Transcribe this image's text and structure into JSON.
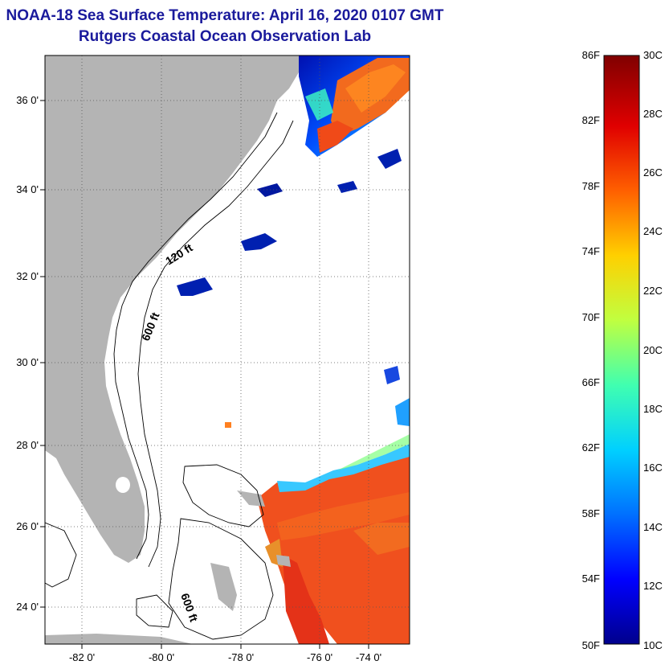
{
  "header": {
    "title": "NOAA-18 Sea Surface Temperature:  April 16, 2020 0107 GMT",
    "subtitle": "Rutgers Coastal Ocean Observation Lab"
  },
  "map": {
    "latitude_ticks": [
      "36 0'",
      "34 0'",
      "32 0'",
      "30 0'",
      "28 0'",
      "26 0'",
      "24 0'"
    ],
    "longitude_ticks": [
      "-82 0'",
      "-80 0'",
      "-78 0'",
      "-76 0'",
      "-74 0'"
    ],
    "contour_labels": [
      "120 ft",
      "600 ft",
      "600 ft"
    ],
    "colors": {
      "land": "#b4b4b4",
      "ocean_missing": "#ffffff",
      "warm_water": "#f0501e",
      "cold_water": "#001e8c"
    }
  },
  "colorbar": {
    "fahrenheit_labels": [
      "86F",
      "82F",
      "78F",
      "74F",
      "70F",
      "66F",
      "62F",
      "58F",
      "54F",
      "50F"
    ],
    "celsius_labels": [
      "30C",
      "28C",
      "26C",
      "24C",
      "22C",
      "20C",
      "18C",
      "16C",
      "14C",
      "12C",
      "10C"
    ],
    "colormap": [
      "#00008c",
      "#0000ff",
      "#0070ff",
      "#00d0ff",
      "#40ffb0",
      "#c0ff40",
      "#ffd000",
      "#ff6000",
      "#e00000",
      "#800000"
    ]
  }
}
